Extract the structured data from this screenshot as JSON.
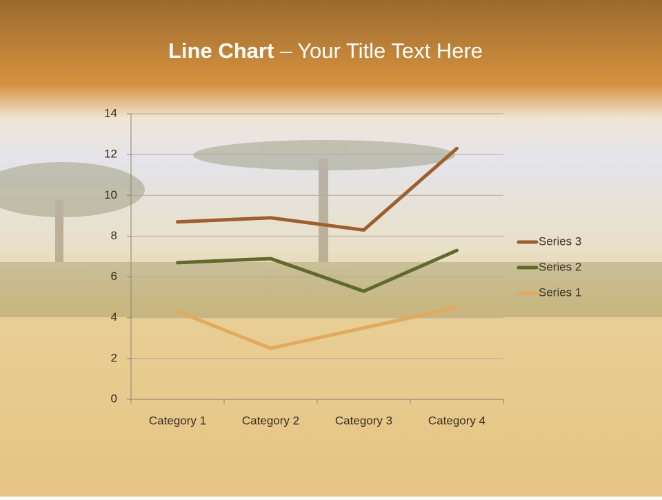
{
  "slide": {
    "title_bold": "Line Chart",
    "title_rest": "– Your Title Text Here"
  },
  "chart_data": {
    "type": "line",
    "stacked": true,
    "categories": [
      "Category 1",
      "Category 2",
      "Category 3",
      "Category 4"
    ],
    "series": [
      {
        "name": "Series 1",
        "color": "#e2aa5e",
        "values": [
          4.3,
          2.5,
          3.5,
          4.5
        ]
      },
      {
        "name": "Series 2",
        "color": "#5f6a2c",
        "values": [
          2.4,
          4.4,
          1.8,
          2.8
        ]
      },
      {
        "name": "Series 3",
        "color": "#9e5f2f",
        "values": [
          2,
          2,
          3,
          5
        ]
      }
    ],
    "ylim": [
      0,
      14
    ],
    "yticks": [
      0,
      2,
      4,
      6,
      8,
      10,
      12,
      14
    ],
    "grid": true,
    "legend": "right"
  }
}
